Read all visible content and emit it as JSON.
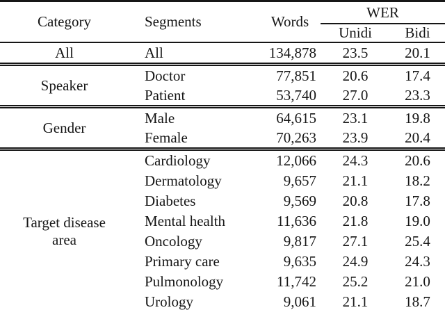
{
  "table": {
    "header": {
      "category": "Category",
      "segments": "Segments",
      "words": "Words",
      "wer_group": "WER",
      "unidi": "Unidi",
      "bidi": "Bidi"
    },
    "sections": [
      {
        "category": "All",
        "rows": [
          {
            "segment": "All",
            "words": "134,878",
            "unidi": "23.5",
            "bidi": "20.1"
          }
        ]
      },
      {
        "category": "Speaker",
        "rows": [
          {
            "segment": "Doctor",
            "words": "77,851",
            "unidi": "20.6",
            "bidi": "17.4"
          },
          {
            "segment": "Patient",
            "words": "53,740",
            "unidi": "27.0",
            "bidi": "23.3"
          }
        ]
      },
      {
        "category": "Gender",
        "rows": [
          {
            "segment": "Male",
            "words": "64,615",
            "unidi": "23.1",
            "bidi": "19.8"
          },
          {
            "segment": "Female",
            "words": "70,263",
            "unidi": "23.9",
            "bidi": "20.4"
          }
        ]
      },
      {
        "category": "Target disease area",
        "rows": [
          {
            "segment": "Cardiology",
            "words": "12,066",
            "unidi": "24.3",
            "bidi": "20.6"
          },
          {
            "segment": "Dermatology",
            "words": "9,657",
            "unidi": "21.1",
            "bidi": "18.2"
          },
          {
            "segment": "Diabetes",
            "words": "9,569",
            "unidi": "20.8",
            "bidi": "17.8"
          },
          {
            "segment": "Mental health",
            "words": "11,636",
            "unidi": "21.8",
            "bidi": "19.0"
          },
          {
            "segment": "Oncology",
            "words": "9,817",
            "unidi": "27.1",
            "bidi": "25.4"
          },
          {
            "segment": "Primary care",
            "words": "9,635",
            "unidi": "24.9",
            "bidi": "24.3"
          },
          {
            "segment": "Pulmonology",
            "words": "11,742",
            "unidi": "25.2",
            "bidi": "21.0"
          },
          {
            "segment": "Urology",
            "words": "9,061",
            "unidi": "21.1",
            "bidi": "18.7"
          }
        ]
      }
    ]
  },
  "chart_data": {
    "type": "table",
    "columns": [
      "Category",
      "Segments",
      "Words",
      "WER Unidi",
      "WER Bidi"
    ],
    "rows": [
      [
        "All",
        "All",
        134878,
        23.5,
        20.1
      ],
      [
        "Speaker",
        "Doctor",
        77851,
        20.6,
        17.4
      ],
      [
        "Speaker",
        "Patient",
        53740,
        27.0,
        23.3
      ],
      [
        "Gender",
        "Male",
        64615,
        23.1,
        19.8
      ],
      [
        "Gender",
        "Female",
        70263,
        23.9,
        20.4
      ],
      [
        "Target disease area",
        "Cardiology",
        12066,
        24.3,
        20.6
      ],
      [
        "Target disease area",
        "Dermatology",
        9657,
        21.1,
        18.2
      ],
      [
        "Target disease area",
        "Diabetes",
        9569,
        20.8,
        17.8
      ],
      [
        "Target disease area",
        "Mental health",
        11636,
        21.8,
        19.0
      ],
      [
        "Target disease area",
        "Oncology",
        9817,
        27.1,
        25.4
      ],
      [
        "Target disease area",
        "Primary care",
        9635,
        24.9,
        24.3
      ],
      [
        "Target disease area",
        "Pulmonology",
        11742,
        25.2,
        21.0
      ],
      [
        "Target disease area",
        "Urology",
        9061,
        21.1,
        18.7
      ]
    ]
  }
}
